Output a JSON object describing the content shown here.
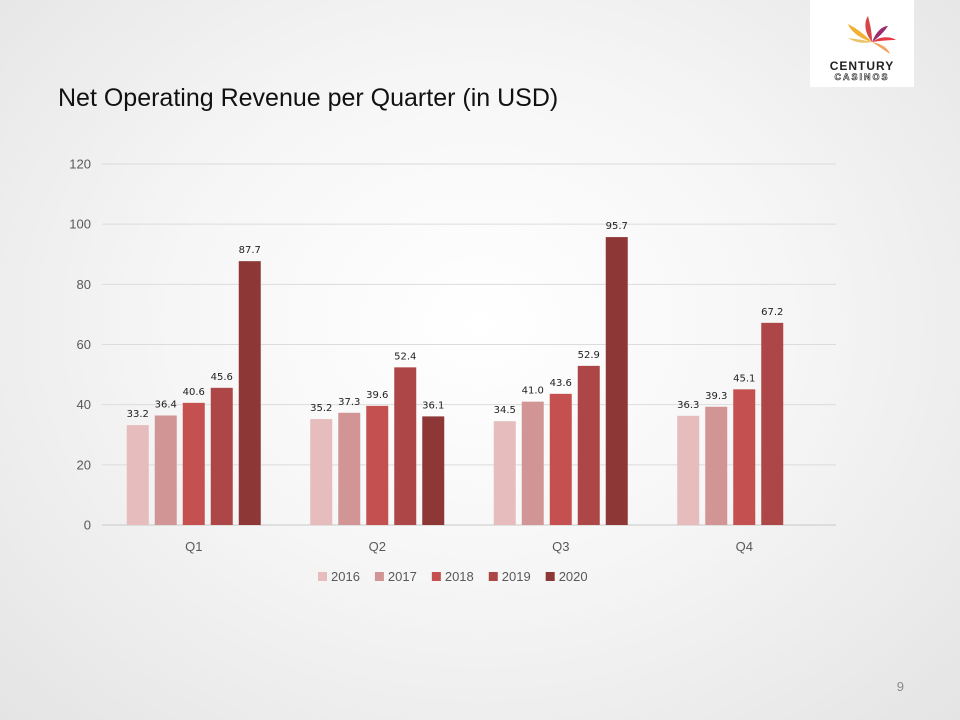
{
  "slide": {
    "title": "Net Operating Revenue per Quarter (in USD)",
    "page_number": "9"
  },
  "logo": {
    "line1": "CENTURY",
    "line2": "CASINOS",
    "colors": [
      "#e63946",
      "#f4a261",
      "#e9c46a",
      "#9b2c6f",
      "#d64545",
      "#f2b134"
    ]
  },
  "chart_data": {
    "type": "bar",
    "title": "",
    "xlabel": "",
    "ylabel": "",
    "ylim": [
      0,
      120
    ],
    "yticks": [
      0,
      20,
      40,
      60,
      80,
      100,
      120
    ],
    "grid": true,
    "legend_position": "bottom",
    "categories": [
      "Q1",
      "Q2",
      "Q3",
      "Q4"
    ],
    "series": [
      {
        "name": "2016",
        "color": "#e6bcbc",
        "values": [
          33.2,
          35.2,
          34.5,
          36.3
        ]
      },
      {
        "name": "2017",
        "color": "#d29595",
        "values": [
          36.4,
          37.3,
          41.0,
          39.3
        ]
      },
      {
        "name": "2018",
        "color": "#c55050",
        "values": [
          40.6,
          39.6,
          43.6,
          45.1
        ]
      },
      {
        "name": "2019",
        "color": "#ad4646",
        "values": [
          45.6,
          52.4,
          52.9,
          67.2
        ]
      },
      {
        "name": "2020",
        "color": "#8d3736",
        "values": [
          87.7,
          36.1,
          95.7,
          null
        ]
      }
    ]
  }
}
